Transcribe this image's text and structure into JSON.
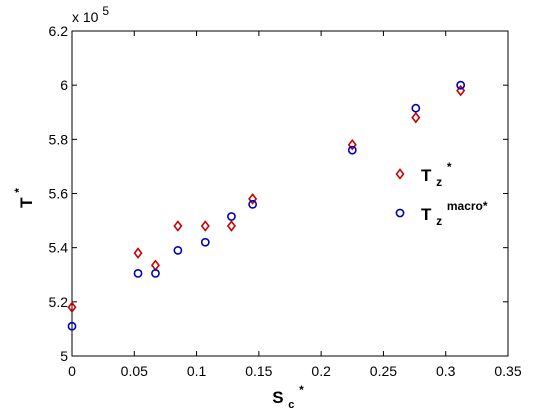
{
  "chart_data": {
    "type": "scatter",
    "xlabel": "S",
    "xlabel_sub": "c",
    "xlabel_sup": "*",
    "ylabel": "T",
    "ylabel_sup": "*",
    "y_multiplier": "x 10",
    "y_multiplier_exp": "5",
    "xlim": [
      0,
      0.35
    ],
    "ylim": [
      5.0,
      6.2
    ],
    "x_ticks": [
      "0",
      "0.05",
      "0.1",
      "0.15",
      "0.2",
      "0.25",
      "0.3",
      "0.35"
    ],
    "y_ticks": [
      "5",
      "5.2",
      "5.4",
      "5.6",
      "5.8",
      "6",
      "6.2"
    ],
    "grid": false,
    "legend_position": "right",
    "series": [
      {
        "name": "T",
        "name_sub": "z",
        "name_sup": "*",
        "marker": "diamond",
        "color": "#cc0000",
        "x": [
          0,
          0.053,
          0.067,
          0.085,
          0.107,
          0.128,
          0.145,
          0.225,
          0.276,
          0.312
        ],
        "y": [
          5.18,
          5.38,
          5.335,
          5.48,
          5.48,
          5.48,
          5.58,
          5.78,
          5.88,
          5.98
        ]
      },
      {
        "name": "T",
        "name_sub": "z",
        "name_sup": "macro*",
        "marker": "circle",
        "color": "#0000bb",
        "x": [
          0,
          0.053,
          0.067,
          0.085,
          0.107,
          0.128,
          0.145,
          0.225,
          0.276,
          0.312
        ],
        "y": [
          5.11,
          5.305,
          5.305,
          5.39,
          5.42,
          5.515,
          5.56,
          5.76,
          5.915,
          6.0
        ]
      }
    ]
  }
}
